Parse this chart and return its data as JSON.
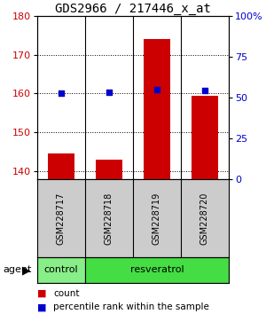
{
  "title": "GDS2966 / 217446_x_at",
  "samples": [
    "GSM228717",
    "GSM228718",
    "GSM228719",
    "GSM228720"
  ],
  "bar_values": [
    144.5,
    143.0,
    174.0,
    159.5
  ],
  "percentile_values": [
    160.0,
    160.2,
    161.0,
    160.8
  ],
  "ylim_left": [
    138,
    180
  ],
  "ylim_right": [
    0,
    100
  ],
  "yticks_left": [
    140,
    150,
    160,
    170,
    180
  ],
  "yticks_right": [
    0,
    25,
    50,
    75,
    100
  ],
  "ytick_labels_right": [
    "0",
    "25",
    "50",
    "75",
    "100%"
  ],
  "bar_color": "#cc0000",
  "percentile_color": "#0000cc",
  "bar_bottom": 138,
  "label_area_color": "#cccccc",
  "group_control_color": "#88ee88",
  "group_resveratrol_color": "#44dd44",
  "background_color": "#ffffff",
  "title_fontsize": 10,
  "tick_fontsize": 8,
  "sample_fontsize": 7,
  "group_fontsize": 8,
  "legend_fontsize": 7.5,
  "agent_fontsize": 8
}
